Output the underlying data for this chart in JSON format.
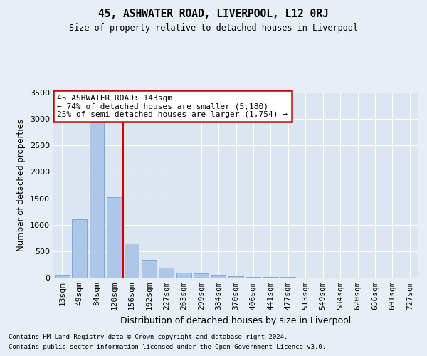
{
  "title": "45, ASHWATER ROAD, LIVERPOOL, L12 0RJ",
  "subtitle": "Size of property relative to detached houses in Liverpool",
  "xlabel": "Distribution of detached houses by size in Liverpool",
  "ylabel": "Number of detached properties",
  "categories": [
    "13sqm",
    "49sqm",
    "84sqm",
    "120sqm",
    "156sqm",
    "192sqm",
    "227sqm",
    "263sqm",
    "299sqm",
    "334sqm",
    "370sqm",
    "406sqm",
    "441sqm",
    "477sqm",
    "513sqm",
    "549sqm",
    "584sqm",
    "620sqm",
    "656sqm",
    "691sqm",
    "727sqm"
  ],
  "values": [
    50,
    1100,
    2950,
    1520,
    650,
    340,
    190,
    90,
    80,
    55,
    30,
    20,
    15,
    8,
    4,
    2,
    2,
    1,
    1,
    0,
    0
  ],
  "bar_color": "#aec6e8",
  "bar_edge_color": "#5b9bd5",
  "vline_color": "#cc0000",
  "annotation_text": "45 ASHWATER ROAD: 143sqm\n← 74% of detached houses are smaller (5,180)\n25% of semi-detached houses are larger (1,754) →",
  "annotation_box_color": "#cc0000",
  "ylim": [
    0,
    3500
  ],
  "yticks": [
    0,
    500,
    1000,
    1500,
    2000,
    2500,
    3000,
    3500
  ],
  "background_color": "#e8eef5",
  "plot_bg_color": "#dce6f0",
  "grid_color": "#ffffff",
  "footer_line1": "Contains HM Land Registry data © Crown copyright and database right 2024.",
  "footer_line2": "Contains public sector information licensed under the Open Government Licence v3.0."
}
